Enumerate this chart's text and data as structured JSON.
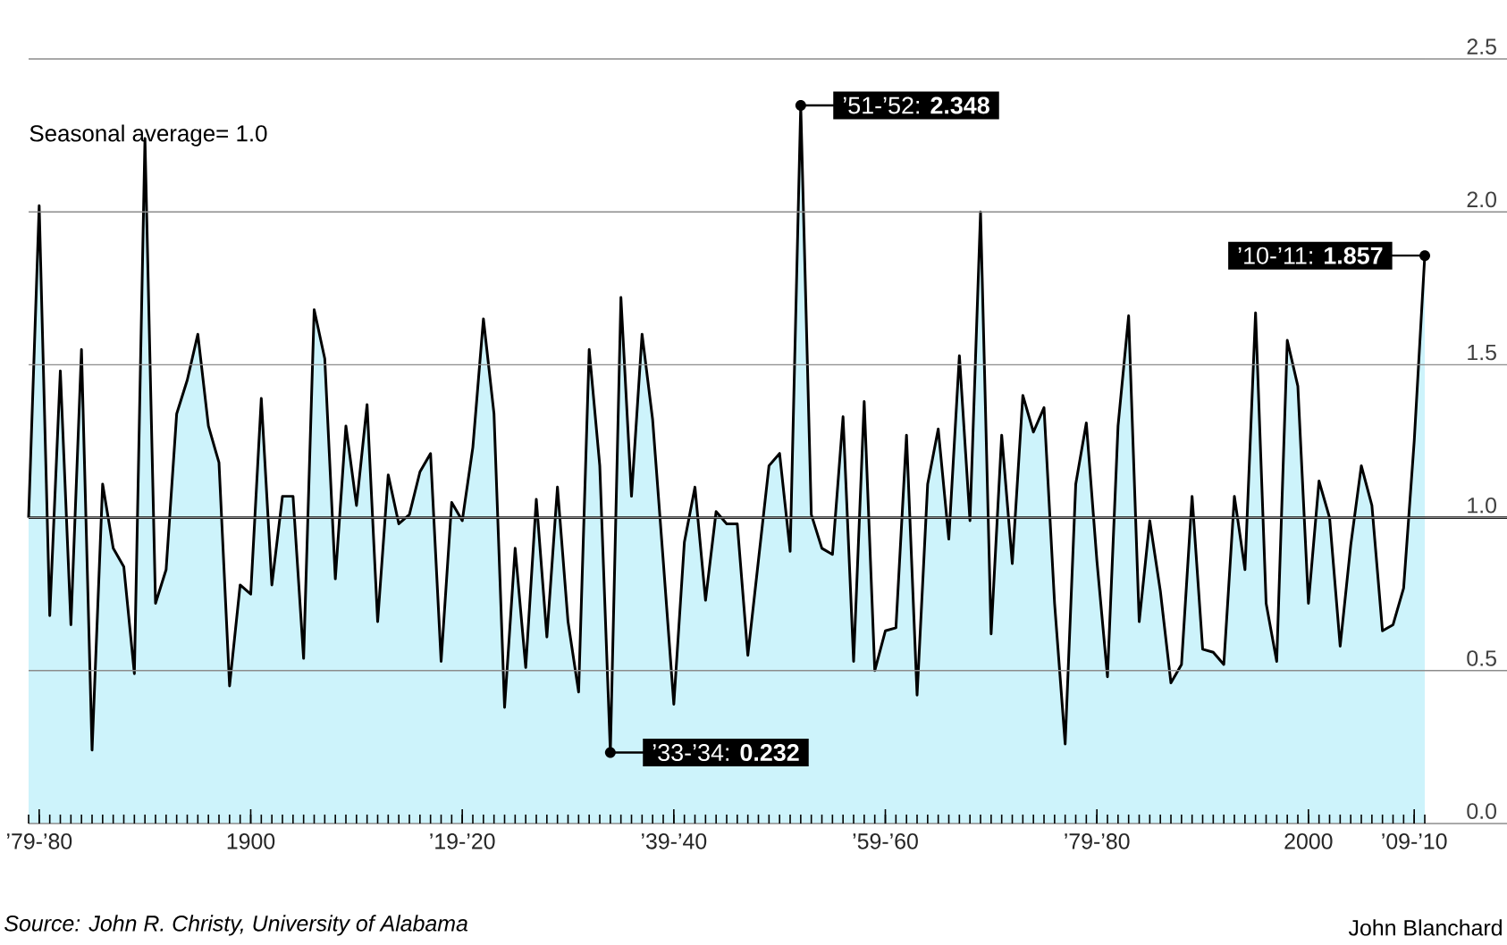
{
  "chart_data": {
    "type": "area",
    "categories": [
      null,
      "’79-’80",
      null,
      null,
      null,
      null,
      null,
      null,
      null,
      null,
      null,
      null,
      null,
      null,
      null,
      null,
      null,
      null,
      null,
      null,
      null,
      "1900",
      null,
      null,
      null,
      null,
      null,
      null,
      null,
      null,
      null,
      null,
      null,
      null,
      null,
      null,
      null,
      null,
      null,
      null,
      null,
      "’19-’20",
      null,
      null,
      null,
      null,
      null,
      null,
      null,
      null,
      null,
      null,
      null,
      null,
      null,
      null,
      null,
      null,
      null,
      null,
      null,
      "’39-’40",
      null,
      null,
      null,
      null,
      null,
      null,
      null,
      null,
      null,
      null,
      null,
      null,
      null,
      null,
      null,
      null,
      null,
      null,
      null,
      "’59-’60",
      null,
      null,
      null,
      null,
      null,
      null,
      null,
      null,
      null,
      null,
      null,
      null,
      null,
      null,
      null,
      null,
      null,
      null,
      null,
      "’79-’80",
      null,
      null,
      null,
      null,
      null,
      null,
      null,
      null,
      null,
      null,
      null,
      null,
      null,
      null,
      null,
      null,
      null,
      null,
      null,
      "2000",
      null,
      null,
      null,
      null,
      null,
      null,
      null,
      null,
      null,
      "’09-’10",
      null
    ],
    "series": [
      {
        "color": "#000000",
        "values": [
          1.0,
          2.02,
          0.68,
          1.48,
          0.65,
          1.55,
          0.24,
          1.11,
          0.9,
          0.84,
          0.49,
          2.24,
          0.72,
          0.83,
          1.34,
          1.45,
          1.6,
          1.3,
          1.18,
          0.45,
          0.78,
          0.75,
          1.39,
          0.78,
          1.07,
          1.07,
          0.54,
          1.68,
          1.52,
          0.8,
          1.3,
          1.04,
          1.37,
          0.66,
          1.14,
          0.98,
          1.01,
          1.15,
          1.21,
          0.53,
          1.05,
          0.99,
          1.23,
          1.65,
          1.34,
          0.38,
          0.9,
          0.51,
          1.06,
          0.61,
          1.1,
          0.66,
          0.43,
          1.55,
          1.17,
          0.232,
          1.72,
          1.07,
          1.6,
          1.32,
          0.86,
          0.39,
          0.92,
          1.1,
          0.73,
          1.02,
          0.98,
          0.98,
          0.55,
          0.86,
          1.17,
          1.21,
          0.89,
          2.348,
          1.01,
          0.9,
          0.88,
          1.33,
          0.53,
          1.38,
          0.5,
          0.63,
          0.64,
          1.27,
          0.42,
          1.11,
          1.29,
          0.93,
          1.53,
          0.99,
          2.0,
          0.62,
          1.27,
          0.85,
          1.4,
          1.28,
          1.36,
          0.72,
          0.26,
          1.11,
          1.31,
          0.86,
          0.48,
          1.3,
          1.66,
          0.66,
          0.99,
          0.76,
          0.46,
          0.52,
          1.07,
          0.57,
          0.56,
          0.52,
          1.07,
          0.83,
          1.67,
          0.72,
          0.53,
          1.58,
          1.43,
          0.72,
          1.12,
          1.0,
          0.58,
          0.91,
          1.17,
          1.04,
          0.63,
          0.65,
          0.77,
          1.25,
          1.857
        ]
      }
    ],
    "ylim": [
      0,
      2.5
    ],
    "yticks": [
      {
        "value": 0,
        "label": "0.0"
      },
      {
        "value": 0.5,
        "label": "0.5"
      },
      {
        "value": 1.0,
        "label": "1.0"
      },
      {
        "value": 1.5,
        "label": "1.5"
      },
      {
        "value": 2.0,
        "label": "2.0"
      },
      {
        "value": 2.5,
        "label": "2.5"
      }
    ],
    "grid": "y",
    "ref_lines": [
      {
        "axis": "y",
        "value": 1.0,
        "label": "Seasonal average= 1.0"
      }
    ],
    "annotations": [
      "’51-’52: **2.348**",
      "’33-’34: **0.232**",
      "’10-’11: **1.857**",
      "Source: John R. Christy, University of Alabama",
      "John Blanchard"
    ]
  }
}
